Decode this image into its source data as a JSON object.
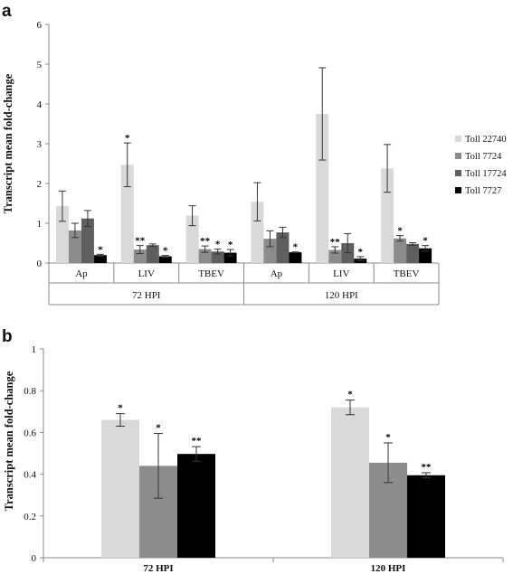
{
  "panel_labels": [
    "a",
    "b"
  ],
  "colors": {
    "Toll 22740": "#d9d9d9",
    "Toll 7724": "#8c8c8c",
    "Toll 17724": "#5f5f5f",
    "Toll 7727": "#000000",
    "axis": "#888888"
  },
  "chart_data": [
    {
      "panel": "a",
      "type": "bar",
      "ylabel": "Transcript mean fold-change",
      "xlabel": "",
      "ylim": [
        0,
        6
      ],
      "yticks": [
        "0",
        "1",
        "2",
        "3",
        "4",
        "5",
        "6"
      ],
      "legend": {
        "position": "right",
        "entries": [
          "Toll 22740",
          "Toll 7724",
          "Toll 17724",
          "Toll 7727"
        ]
      },
      "grid": false,
      "groups": [
        {
          "label": "72 HPI",
          "categories": [
            "Ap",
            "LIV",
            "TBEV"
          ]
        },
        {
          "label": "120 HPI",
          "categories": [
            "Ap",
            "LIV",
            "TBEV"
          ]
        }
      ],
      "categories": [
        "Ap",
        "LIV",
        "TBEV",
        "Ap",
        "LIV",
        "TBEV"
      ],
      "series": [
        {
          "name": "Toll 22740",
          "values": [
            1.43,
            2.47,
            1.19,
            1.54,
            3.75,
            2.38
          ],
          "errors": [
            0.38,
            0.55,
            0.25,
            0.48,
            1.16,
            0.6
          ],
          "sig": [
            "",
            "*",
            "",
            "",
            "",
            ""
          ]
        },
        {
          "name": "Toll 7724",
          "values": [
            0.82,
            0.34,
            0.35,
            0.61,
            0.33,
            0.62
          ],
          "errors": [
            0.18,
            0.1,
            0.08,
            0.2,
            0.08,
            0.07
          ],
          "sig": [
            "",
            "**",
            "**",
            "",
            "**",
            "*"
          ]
        },
        {
          "name": "Toll 17724",
          "values": [
            1.12,
            0.45,
            0.29,
            0.77,
            0.5,
            0.48
          ],
          "errors": [
            0.2,
            0.03,
            0.06,
            0.13,
            0.24,
            0.03
          ],
          "sig": [
            "",
            "",
            "*",
            "",
            "",
            ""
          ]
        },
        {
          "name": "Toll 7727",
          "values": [
            0.2,
            0.17,
            0.26,
            0.27,
            0.11,
            0.37
          ],
          "errors": [
            0.02,
            0.02,
            0.08,
            0.01,
            0.05,
            0.07
          ],
          "sig": [
            "*",
            "*",
            "*",
            "*",
            "*",
            "*"
          ]
        }
      ]
    },
    {
      "panel": "b",
      "type": "bar",
      "ylabel": "Transcript mean fold-change",
      "xlabel": "",
      "ylim": [
        0,
        1
      ],
      "yticks": [
        "0",
        "0.2",
        "0.4",
        "0.6",
        "0.8",
        "1"
      ],
      "grid": false,
      "categories": [
        "72 HPI",
        "120 HPI"
      ],
      "series": [
        {
          "color_key": "Toll 22740",
          "values": [
            0.66,
            0.72
          ],
          "errors": [
            0.03,
            0.035
          ],
          "sig": [
            "*",
            "*"
          ]
        },
        {
          "color_key": "Toll 7724",
          "values": [
            0.44,
            0.455
          ],
          "errors": [
            0.155,
            0.095
          ],
          "sig": [
            "*",
            "*"
          ]
        },
        {
          "color_key": "Toll 7727",
          "values": [
            0.497,
            0.395
          ],
          "errors": [
            0.035,
            0.012
          ],
          "sig": [
            "**",
            "**"
          ]
        }
      ]
    }
  ]
}
